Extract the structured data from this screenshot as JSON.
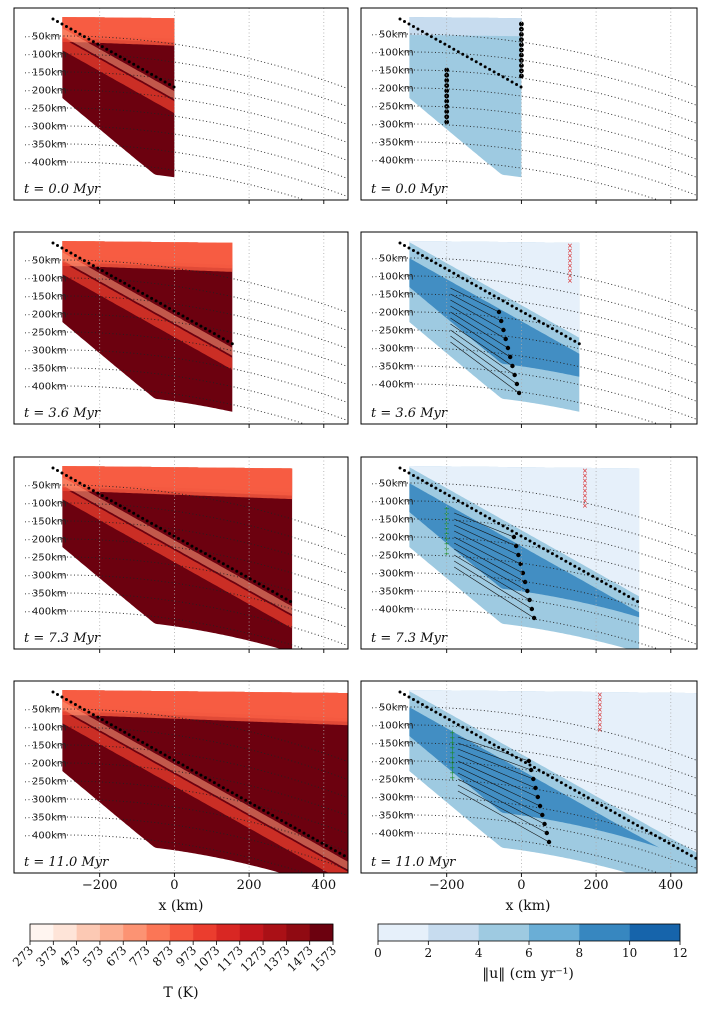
{
  "chart_data": [
    {
      "type": "contour",
      "figure": "temperature",
      "panels": [
        {
          "time_label": "t = 0.0 Myr",
          "time_myr": 0.0,
          "x_extent_km": [
            -300,
            0
          ]
        },
        {
          "time_label": "t = 3.6 Myr",
          "time_myr": 3.6,
          "x_extent_km": [
            -300,
            155
          ]
        },
        {
          "time_label": "t = 7.3 Myr",
          "time_myr": 7.3,
          "x_extent_km": [
            -300,
            315
          ]
        },
        {
          "time_label": "t = 11.0 Myr",
          "time_myr": 11.0,
          "x_extent_km": [
            -300,
            475
          ]
        }
      ],
      "depth_labels": [
        "50km",
        "100km",
        "150km",
        "200km",
        "250km",
        "300km",
        "350km",
        "400km"
      ],
      "depths_km": [
        50,
        100,
        150,
        200,
        250,
        300,
        350,
        400
      ],
      "xlabel": "x (km)",
      "xticks": [
        -200,
        0,
        200,
        400
      ],
      "xlim": [
        -400,
        500
      ],
      "colorbar": {
        "label": "T (K)",
        "ticks": [
          "273",
          "373",
          "473",
          "573",
          "673",
          "773",
          "873",
          "973",
          "1073",
          "1173",
          "1273",
          "1373",
          "1473",
          "1573"
        ],
        "colors": [
          "#fff5f0",
          "#fee4d8",
          "#fcc9b4",
          "#fcaf93",
          "#fc9373",
          "#fb7656",
          "#f6573e",
          "#eb3d2e",
          "#d92723",
          "#c3161c",
          "#aa1016",
          "#900a12",
          "#6c010f"
        ]
      }
    },
    {
      "type": "contour",
      "figure": "velocity",
      "panels": [
        {
          "time_label": "t = 0.0 Myr",
          "time_myr": 0.0
        },
        {
          "time_label": "t = 3.6 Myr",
          "time_myr": 3.6
        },
        {
          "time_label": "t = 7.3 Myr",
          "time_myr": 7.3
        },
        {
          "time_label": "t = 11.0 Myr",
          "time_myr": 11.0
        }
      ],
      "xlabel": "x (km)",
      "xticks": [
        -200,
        0,
        200,
        400
      ],
      "colorbar": {
        "label": "‖u‖ (cm yr⁻¹)",
        "ticks": [
          "0",
          "2",
          "4",
          "6",
          "8",
          "10",
          "12"
        ],
        "colors": [
          "#e6f0fa",
          "#c7dcef",
          "#9ecae1",
          "#6aaed6",
          "#3787c0",
          "#1664ab"
        ]
      },
      "marker_colors": {
        "set_1": "#000000",
        "set_2": "#d81e1e",
        "set_3": "#1a8a1a"
      }
    }
  ]
}
